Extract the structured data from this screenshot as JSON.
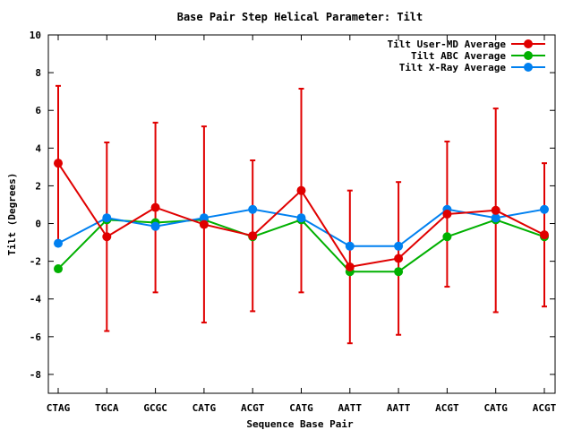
{
  "chart_data": {
    "type": "line",
    "title": "Base Pair Step Helical Parameter: Tilt",
    "xlabel": "Sequence Base Pair",
    "ylabel": "Tilt (Degrees)",
    "ylim": [
      -9,
      10
    ],
    "yticks": [
      -8,
      -6,
      -4,
      -2,
      0,
      2,
      4,
      6,
      8,
      10
    ],
    "categories": [
      "CTAG",
      "TGCA",
      "GCGC",
      "CATG",
      "ACGT",
      "CATG",
      "AATT",
      "AATT",
      "ACGT",
      "CATG",
      "ACGT"
    ],
    "grid": false,
    "legend_position": "top-right",
    "series": [
      {
        "name": "Tilt User-MD Average",
        "color": "#e00000",
        "values": [
          3.2,
          -0.7,
          0.85,
          -0.05,
          -0.65,
          1.75,
          -2.3,
          -1.85,
          0.5,
          0.7,
          -0.6
        ],
        "error": [
          4.1,
          5.0,
          4.5,
          5.2,
          4.0,
          5.4,
          4.05,
          4.05,
          3.85,
          5.4,
          3.8
        ]
      },
      {
        "name": "Tilt ABC Average",
        "color": "#00b000",
        "values": [
          -2.4,
          0.2,
          0.05,
          0.2,
          -0.7,
          0.2,
          -2.55,
          -2.55,
          -0.7,
          0.2,
          -0.7
        ]
      },
      {
        "name": "Tilt X-Ray Average",
        "color": "#0080f0",
        "values": [
          -1.05,
          0.3,
          -0.15,
          0.3,
          0.75,
          0.3,
          -1.2,
          -1.2,
          0.75,
          0.3,
          0.75
        ]
      }
    ]
  }
}
